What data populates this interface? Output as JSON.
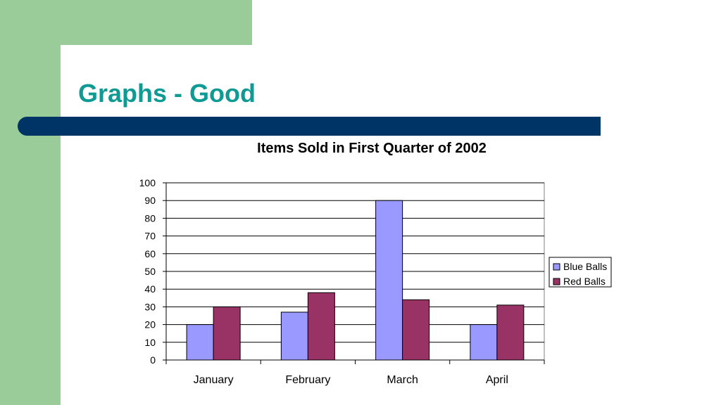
{
  "slide": {
    "title": "Graphs - Good"
  },
  "colors": {
    "sidebar": "#99cc99",
    "title_text": "#109a94",
    "rule": "#003366"
  },
  "chart_data": {
    "type": "bar",
    "title": "Items Sold in First Quarter of 2002",
    "categories": [
      "January",
      "February",
      "March",
      "April"
    ],
    "series": [
      {
        "name": "Blue Balls",
        "values": [
          20,
          27,
          90,
          20
        ],
        "color": "#9999ff"
      },
      {
        "name": "Red Balls",
        "values": [
          30,
          38,
          34,
          31
        ],
        "color": "#993366"
      }
    ],
    "yticks": [
      "0",
      "10",
      "20",
      "30",
      "40",
      "50",
      "60",
      "70",
      "80",
      "90",
      "100"
    ],
    "ylim": [
      0,
      100
    ],
    "grid": true,
    "legend": "right"
  }
}
